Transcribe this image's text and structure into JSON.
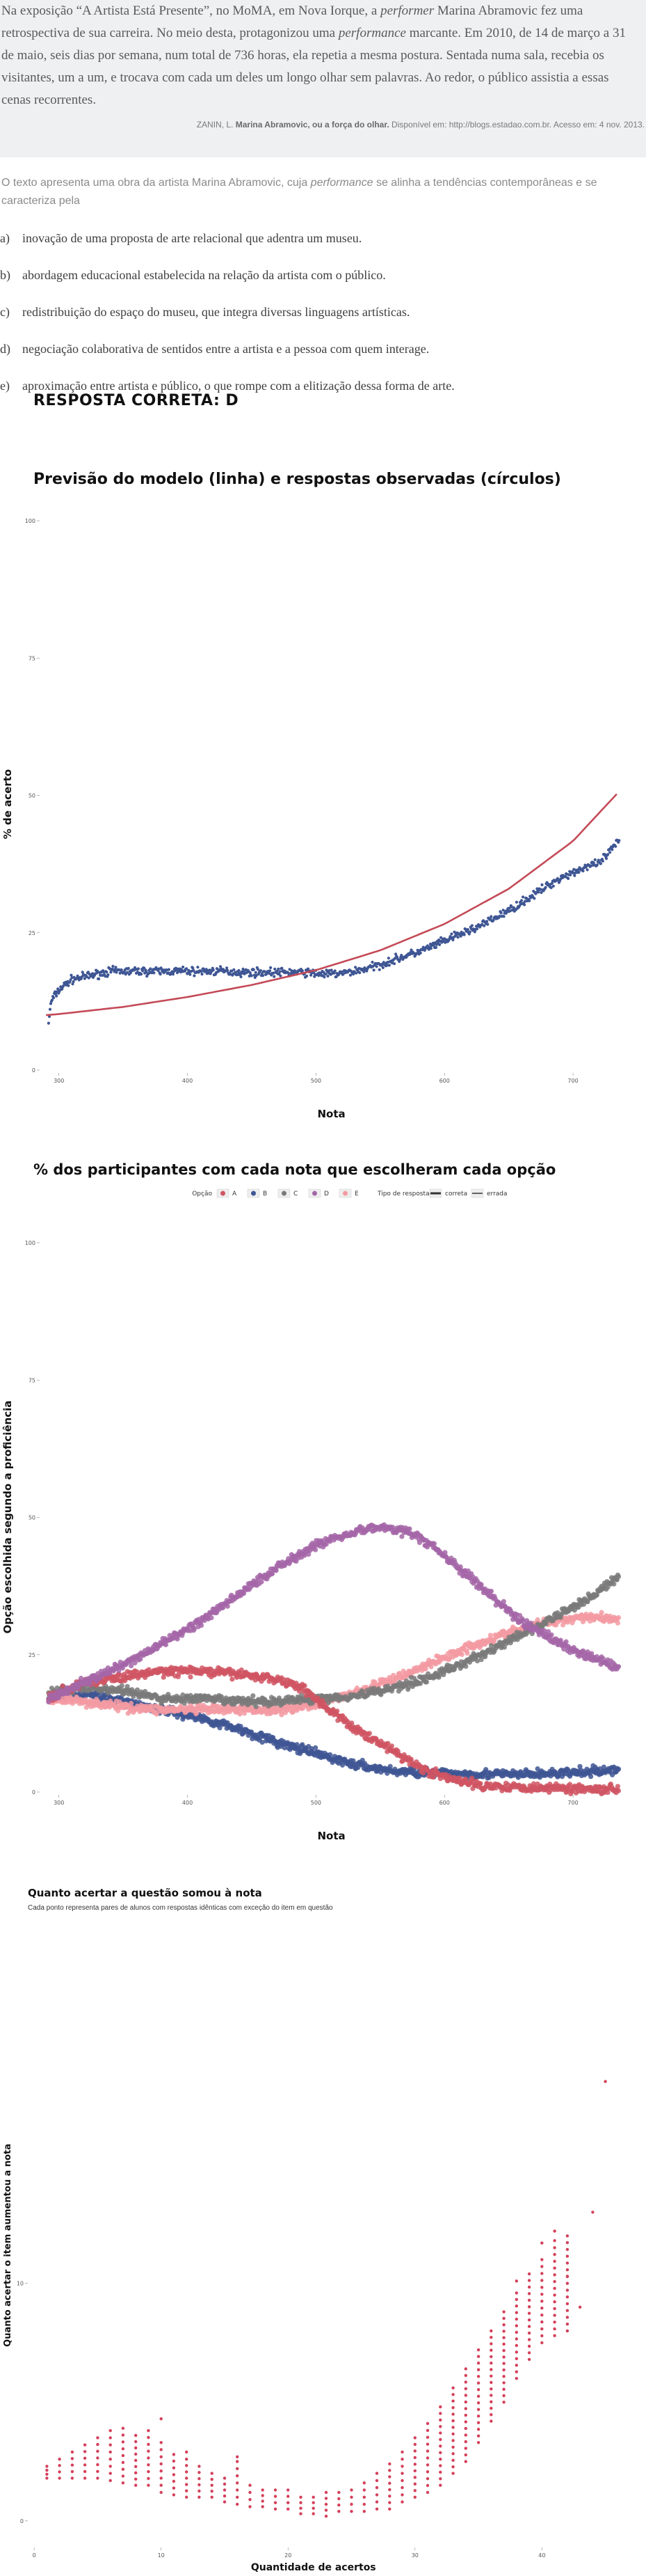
{
  "quote": {
    "parts": [
      {
        "t": "Na exposição “A Artista Está Presente”, no MoMA, em Nova Iorque, a ",
        "i": false
      },
      {
        "t": "performer",
        "i": true
      },
      {
        "t": " Marina Abramovic fez uma retrospectiva de sua carreira. No meio desta, protagonizou uma ",
        "i": false
      },
      {
        "t": "performance",
        "i": true
      },
      {
        "t": " marcante. Em 2010, de 14 de março a 31 de maio, seis dias por semana, num total de 736 horas, ela repetia a mesma postura. Sentada numa sala, recebia os visitantes, um a um, e trocava com cada um deles um longo olhar sem palavras. Ao redor, o público assistia a essas cenas recorrentes.",
        "i": false
      }
    ],
    "source_author": "ZANIN, L. ",
    "source_title": "Marina Abramovic, ou a força do olhar.",
    "source_rest": " Disponível em: http://blogs.estadao.com.br. Acesso em: 4 nov. 2013."
  },
  "prompt": {
    "before": "O texto apresenta uma obra da artista Marina Abramovic, cuja ",
    "italic": "performance",
    "after": " se alinha a tendências contemporâneas e se caracteriza pela"
  },
  "options": [
    {
      "letter": "a)",
      "text": "inovação de uma proposta de arte relacional que adentra um museu."
    },
    {
      "letter": "b)",
      "text": "abordagem educacional estabelecida na relação da artista com o público."
    },
    {
      "letter": "c)",
      "text": "redistribuição do espaço do museu, que integra diversas linguagens artísticas."
    },
    {
      "letter": "d)",
      "text": "negociação colaborativa de sentidos entre a artista e a pessoa com quem interage."
    },
    {
      "letter": "e)",
      "text": "aproximação entre artista e público, o que rompe com a elitização dessa forma de arte."
    }
  ],
  "answer": "RESPOSTA CORRETA: D",
  "chart_data": [
    {
      "type": "scatter",
      "title": "Previsão do modelo (linha) e respostas observadas (círculos)",
      "xlabel": "Nota",
      "ylabel": "% de acerto",
      "xlim": [
        285,
        740
      ],
      "ylim": [
        0,
        100
      ],
      "xticks": [
        300,
        400,
        500,
        600,
        700
      ],
      "yticks": [
        0,
        25,
        50,
        75,
        100
      ],
      "point_color": "#3f5694",
      "line_color": "#c44a57",
      "observed_points": [
        [
          290,
          5
        ],
        [
          294,
          12.5
        ],
        [
          298,
          14
        ],
        [
          302,
          15
        ],
        [
          310,
          16.5
        ],
        [
          320,
          17
        ],
        [
          330,
          17.5
        ],
        [
          340,
          18
        ],
        [
          350,
          18
        ],
        [
          360,
          18
        ],
        [
          370,
          18
        ],
        [
          380,
          18
        ],
        [
          390,
          18
        ],
        [
          400,
          18
        ],
        [
          410,
          18
        ],
        [
          420,
          18
        ],
        [
          430,
          18
        ],
        [
          440,
          17.8
        ],
        [
          450,
          17.8
        ],
        [
          460,
          17.8
        ],
        [
          470,
          17.8
        ],
        [
          480,
          17.8
        ],
        [
          490,
          17.8
        ],
        [
          500,
          17.6
        ],
        [
          510,
          17.5
        ],
        [
          520,
          17.6
        ],
        [
          530,
          18
        ],
        [
          540,
          18.5
        ],
        [
          550,
          19.2
        ],
        [
          560,
          20
        ],
        [
          570,
          20.8
        ],
        [
          580,
          21.5
        ],
        [
          590,
          22.5
        ],
        [
          600,
          23.5
        ],
        [
          610,
          24.5
        ],
        [
          620,
          25.5
        ],
        [
          630,
          26.5
        ],
        [
          640,
          27.8
        ],
        [
          650,
          29
        ],
        [
          660,
          30.5
        ],
        [
          670,
          32
        ],
        [
          680,
          33.5
        ],
        [
          690,
          35
        ],
        [
          700,
          36
        ],
        [
          710,
          37
        ],
        [
          720,
          37.5
        ],
        [
          735,
          41.5
        ]
      ],
      "model_line": [
        [
          290,
          10
        ],
        [
          300,
          10.2
        ],
        [
          350,
          11.5
        ],
        [
          400,
          13.3
        ],
        [
          450,
          15.5
        ],
        [
          500,
          18.2
        ],
        [
          550,
          21.8
        ],
        [
          600,
          26.6
        ],
        [
          650,
          33
        ],
        [
          700,
          41.7
        ],
        [
          735,
          50.5
        ]
      ]
    },
    {
      "type": "scatter",
      "title": "% dos participantes com cada nota que escolheram cada opção",
      "xlabel": "Nota",
      "ylabel": "Opção escolhida segundo a proficiência",
      "xlim": [
        285,
        740
      ],
      "ylim": [
        0,
        100
      ],
      "xticks": [
        300,
        400,
        500,
        600,
        700
      ],
      "yticks": [
        0,
        25,
        50,
        75,
        100
      ],
      "legend": {
        "option_title": "Opção",
        "options": [
          "A",
          "B",
          "C",
          "D",
          "E"
        ],
        "type_title": "Tipo de resposta",
        "types": [
          "correta",
          "errada"
        ],
        "placement": "top"
      },
      "series": [
        {
          "name": "A",
          "color": "#d05563",
          "values": [
            [
              290,
              17
            ],
            [
              320,
              20
            ],
            [
              350,
              21
            ],
            [
              380,
              22
            ],
            [
              410,
              22
            ],
            [
              440,
              21.5
            ],
            [
              470,
              20.5
            ],
            [
              490,
              19
            ],
            [
              510,
              15
            ],
            [
              530,
              11.5
            ],
            [
              550,
              9
            ],
            [
              570,
              6
            ],
            [
              590,
              3.5
            ],
            [
              610,
              2
            ],
            [
              630,
              1.2
            ],
            [
              660,
              0.9
            ],
            [
              700,
              0.7
            ],
            [
              735,
              0.5
            ]
          ]
        },
        {
          "name": "B",
          "color": "#3f5694",
          "values": [
            [
              290,
              17
            ],
            [
              320,
              18
            ],
            [
              350,
              16.5
            ],
            [
              380,
              15
            ],
            [
              410,
              13.5
            ],
            [
              440,
              11.5
            ],
            [
              470,
              9
            ],
            [
              500,
              7
            ],
            [
              530,
              5
            ],
            [
              560,
              3.8
            ],
            [
              590,
              3.5
            ],
            [
              620,
              3.3
            ],
            [
              660,
              3.2
            ],
            [
              700,
              3.5
            ],
            [
              735,
              4
            ]
          ]
        },
        {
          "name": "C",
          "color": "#7a7a7a",
          "values": [
            [
              290,
              18
            ],
            [
              320,
              19
            ],
            [
              350,
              18.5
            ],
            [
              380,
              17
            ],
            [
              410,
              17
            ],
            [
              440,
              16.5
            ],
            [
              470,
              16.5
            ],
            [
              500,
              17
            ],
            [
              530,
              17.5
            ],
            [
              560,
              19
            ],
            [
              590,
              21
            ],
            [
              620,
              24
            ],
            [
              650,
              27.5
            ],
            [
              680,
              31
            ],
            [
              710,
              35
            ],
            [
              735,
              39
            ]
          ]
        },
        {
          "name": "D",
          "color": "#a466a8",
          "values": [
            [
              290,
              17
            ],
            [
              320,
              20
            ],
            [
              350,
              23
            ],
            [
              380,
              27
            ],
            [
              410,
              31
            ],
            [
              440,
              36
            ],
            [
              470,
              41
            ],
            [
              500,
              45
            ],
            [
              530,
              47.5
            ],
            [
              550,
              48.2
            ],
            [
              570,
              47.5
            ],
            [
              590,
              45
            ],
            [
              610,
              41
            ],
            [
              630,
              37
            ],
            [
              660,
              31
            ],
            [
              690,
              27
            ],
            [
              715,
              24.5
            ],
            [
              735,
              22.5
            ]
          ]
        },
        {
          "name": "E",
          "color": "#f39aa2",
          "values": [
            [
              290,
              17
            ],
            [
              320,
              16.5
            ],
            [
              350,
              15.5
            ],
            [
              380,
              15
            ],
            [
              410,
              15
            ],
            [
              440,
              15
            ],
            [
              470,
              15
            ],
            [
              500,
              16
            ],
            [
              530,
              18
            ],
            [
              560,
              20.5
            ],
            [
              590,
              23.5
            ],
            [
              620,
              26.5
            ],
            [
              650,
              29
            ],
            [
              680,
              31
            ],
            [
              710,
              32
            ],
            [
              735,
              31.5
            ]
          ]
        }
      ]
    },
    {
      "type": "scatter",
      "title": "Quanto acertar a questão somou à nota",
      "subtitle": "Cada ponto representa pares de alunos com respostas idênticas com exceção do item em questão",
      "xlabel": "Quantidade de acertos",
      "ylabel": "Quanto acertar o item aumentou a nota",
      "xlim": [
        -0.5,
        46.5
      ],
      "ylim": [
        -1,
        24.5
      ],
      "xticks": [
        0,
        10,
        20,
        30,
        40
      ],
      "yticks": [
        0,
        10
      ],
      "point_color": "#d4405a",
      "columns": [
        [
          1,
          1.8,
          2.3
        ],
        [
          2,
          1.8,
          2.6
        ],
        [
          3,
          1.8,
          2.9
        ],
        [
          4,
          1.8,
          3.2
        ],
        [
          5,
          1.8,
          3.5
        ],
        [
          6,
          1.7,
          3.8
        ],
        [
          7,
          1.6,
          3.9
        ],
        [
          8,
          1.5,
          3.6
        ],
        [
          9,
          1.5,
          3.8
        ],
        [
          10,
          1.2,
          3.3
        ],
        [
          11,
          1.1,
          2.8
        ],
        [
          12,
          1,
          2.6
        ],
        [
          13,
          1,
          2.3
        ],
        [
          14,
          1,
          2
        ],
        [
          15,
          0.8,
          1.8
        ],
        [
          16,
          0.7,
          2.5
        ],
        [
          17,
          0.6,
          1.5
        ],
        [
          18,
          0.6,
          1.3
        ],
        [
          19,
          0.5,
          1.3
        ],
        [
          20,
          0.5,
          1.3
        ],
        [
          21,
          0.3,
          1
        ],
        [
          22,
          0.3,
          1
        ],
        [
          23,
          0.2,
          1.2
        ],
        [
          24,
          0.4,
          1.2
        ],
        [
          25,
          0.4,
          1.3
        ],
        [
          26,
          0.4,
          1.6
        ],
        [
          27,
          0.5,
          2
        ],
        [
          28,
          0.5,
          2.4
        ],
        [
          29,
          0.8,
          2.9
        ],
        [
          30,
          1,
          3.5
        ],
        [
          31,
          1.2,
          4.1
        ],
        [
          32,
          1.5,
          4.8
        ],
        [
          33,
          2,
          5.6
        ],
        [
          34,
          2.5,
          6.4
        ],
        [
          35,
          3.3,
          7.2
        ],
        [
          36,
          4.2,
          8
        ],
        [
          37,
          5,
          8.8
        ],
        [
          38,
          6,
          9.6
        ],
        [
          39,
          6.8,
          10.4
        ],
        [
          40,
          7.5,
          11
        ],
        [
          41,
          7.8,
          11.5
        ],
        [
          42,
          8,
          12
        ]
      ],
      "outliers": [
        [
          10,
          4.3
        ],
        [
          12,
          2.9
        ],
        [
          16,
          2.7
        ],
        [
          38,
          10.1
        ],
        [
          40,
          11.7
        ],
        [
          41,
          12.2
        ],
        [
          41,
          11.8
        ],
        [
          42,
          10.3
        ],
        [
          43,
          9
        ],
        [
          44,
          13
        ],
        [
          45,
          18.5
        ]
      ]
    }
  ]
}
